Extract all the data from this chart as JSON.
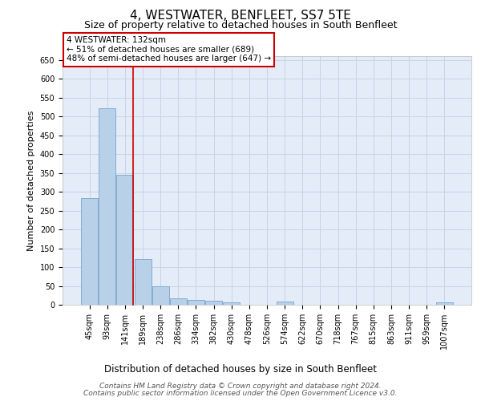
{
  "title": "4, WESTWATER, BENFLEET, SS7 5TE",
  "subtitle": "Size of property relative to detached houses in South Benfleet",
  "xlabel": "Distribution of detached houses by size in South Benfleet",
  "ylabel": "Number of detached properties",
  "categories": [
    "45sqm",
    "93sqm",
    "141sqm",
    "189sqm",
    "238sqm",
    "286sqm",
    "334sqm",
    "382sqm",
    "430sqm",
    "478sqm",
    "526sqm",
    "574sqm",
    "622sqm",
    "670sqm",
    "718sqm",
    "767sqm",
    "815sqm",
    "863sqm",
    "911sqm",
    "959sqm",
    "1007sqm"
  ],
  "values": [
    283,
    522,
    345,
    122,
    48,
    17,
    12,
    10,
    6,
    0,
    0,
    8,
    0,
    0,
    0,
    0,
    0,
    0,
    0,
    0,
    7
  ],
  "bar_color": "#b8d0e8",
  "bar_edgecolor": "#6699cc",
  "highlight_index": 2,
  "highlight_color_edge": "#cc0000",
  "ylim": [
    0,
    660
  ],
  "yticks": [
    0,
    50,
    100,
    150,
    200,
    250,
    300,
    350,
    400,
    450,
    500,
    550,
    600,
    650
  ],
  "annotation_text": "4 WESTWATER: 132sqm\n← 51% of detached houses are smaller (689)\n48% of semi-detached houses are larger (647) →",
  "annotation_box_color": "#ffffff",
  "annotation_box_edgecolor": "#cc0000",
  "footer_line1": "Contains HM Land Registry data © Crown copyright and database right 2024.",
  "footer_line2": "Contains public sector information licensed under the Open Government Licence v3.0.",
  "background_color": "#ffffff",
  "grid_color": "#c8d4e4",
  "title_fontsize": 11,
  "subtitle_fontsize": 9,
  "axis_label_fontsize": 8,
  "tick_fontsize": 7,
  "annotation_fontsize": 7.5,
  "footer_fontsize": 6.5
}
